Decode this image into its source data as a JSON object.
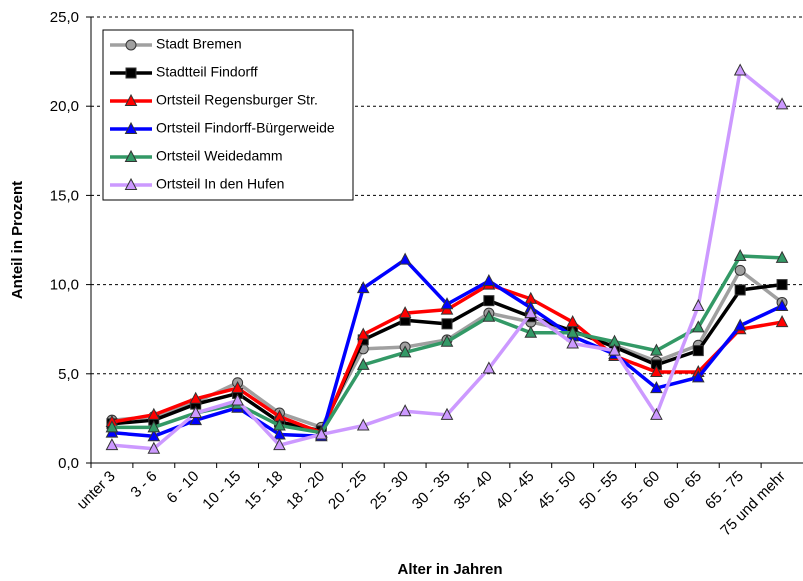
{
  "chart_data": {
    "type": "line",
    "x_label": "Alter in Jahren",
    "y_label": "Anteil in Prozent",
    "categories": [
      "unter 3",
      "3 - 6",
      "6 - 10",
      "10 - 15",
      "15 - 18",
      "18 - 20",
      "20 - 25",
      "25 - 30",
      "30 - 35",
      "35 - 40",
      "40 - 45",
      "45 - 50",
      "50 - 55",
      "55 - 60",
      "60 - 65",
      "65 - 75",
      "75 und mehr"
    ],
    "ylim": [
      0,
      25
    ],
    "yticks": [
      {
        "value": 0,
        "label": "0,0"
      },
      {
        "value": 5,
        "label": "5,0"
      },
      {
        "value": 10,
        "label": "10,0"
      },
      {
        "value": 15,
        "label": "15,0"
      },
      {
        "value": 20,
        "label": "20,0"
      },
      {
        "value": 25,
        "label": "25,0"
      }
    ],
    "grid": true,
    "legend": "top-left",
    "series": [
      {
        "name": "Stadt Bremen",
        "color": "#a0a0a0",
        "marker": "circle",
        "values": [
          2.4,
          2.6,
          3.4,
          4.5,
          2.8,
          2.0,
          6.4,
          6.5,
          6.9,
          8.4,
          7.9,
          7.4,
          6.6,
          5.7,
          6.6,
          10.8,
          9.0
        ]
      },
      {
        "name": "Stadtteil Findorff",
        "color": "#000000",
        "marker": "square",
        "values": [
          2.2,
          2.4,
          3.3,
          3.9,
          2.3,
          1.8,
          6.9,
          8.0,
          7.8,
          9.1,
          8.2,
          7.4,
          6.5,
          5.5,
          6.3,
          9.7,
          10.0
        ]
      },
      {
        "name": "Ortsteil Regensburger Str.",
        "color": "#ff0000",
        "marker": "triangle",
        "values": [
          2.3,
          2.7,
          3.6,
          4.2,
          2.6,
          1.7,
          7.2,
          8.4,
          8.6,
          10.0,
          9.2,
          7.9,
          6.0,
          5.1,
          5.1,
          7.5,
          7.9
        ]
      },
      {
        "name": "Ortsteil Findorff-Bürgerweide",
        "color": "#0000ff",
        "marker": "triangle",
        "values": [
          1.7,
          1.5,
          2.4,
          3.1,
          1.6,
          1.5,
          9.8,
          11.4,
          8.9,
          10.2,
          8.7,
          7.1,
          6.1,
          4.2,
          4.8,
          7.7,
          8.8
        ]
      },
      {
        "name": "Ortsteil Weidedamm",
        "color": "#339966",
        "marker": "triangle",
        "values": [
          2.0,
          2.0,
          2.8,
          3.3,
          2.1,
          1.7,
          5.5,
          6.2,
          6.8,
          8.2,
          7.3,
          7.3,
          6.8,
          6.3,
          7.6,
          11.6,
          11.5
        ]
      },
      {
        "name": "Ortsteil In den Hufen",
        "color": "#cc99ff",
        "marker": "triangle",
        "values": [
          1.0,
          0.8,
          2.8,
          3.5,
          1.0,
          1.6,
          2.1,
          2.9,
          2.7,
          5.3,
          8.4,
          6.7,
          6.3,
          2.7,
          8.8,
          22.0,
          20.1
        ]
      }
    ]
  }
}
